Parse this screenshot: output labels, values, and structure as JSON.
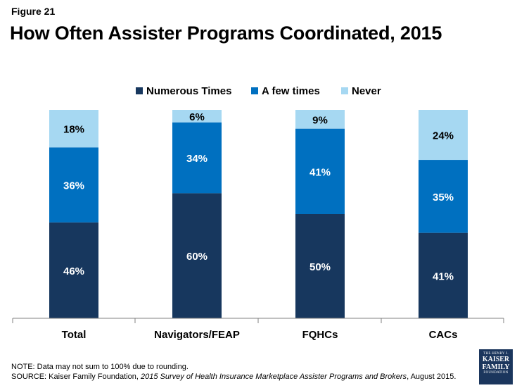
{
  "figure_label": "Figure 21",
  "title": "How Often Assister Programs Coordinated, 2015",
  "chart_data": {
    "type": "bar",
    "stacked": true,
    "categories": [
      "Total",
      "Navigators/FEAP",
      "FQHCs",
      "CACs"
    ],
    "series": [
      {
        "name": "Numerous Times",
        "color": "#17375e",
        "values": [
          46,
          60,
          50,
          41
        ],
        "labels": [
          "46%",
          "60%",
          "50%",
          "41%"
        ]
      },
      {
        "name": "A few times",
        "color": "#0070c0",
        "values": [
          36,
          34,
          41,
          35
        ],
        "labels": [
          "36%",
          "34%",
          "41%",
          "35%"
        ]
      },
      {
        "name": "Never",
        "color": "#a6d8f2",
        "values": [
          18,
          6,
          9,
          24
        ],
        "labels": [
          "18%",
          "6%",
          "9%",
          "24%"
        ]
      }
    ],
    "ylim": [
      0,
      100
    ],
    "grid": false,
    "legend_position": "top"
  },
  "footer": {
    "note": "NOTE: Data may not sum to 100% due to rounding.",
    "source_prefix": "SOURCE: Kaiser Family Foundation, ",
    "source_title": "2015 Survey of Health Insurance Marketplace Assister Programs and Brokers",
    "source_suffix": ", August 2015."
  },
  "logo": {
    "line1": "THE HENRY J.",
    "line2": "KAISER",
    "line3": "FAMILY",
    "line4": "FOUNDATION"
  }
}
